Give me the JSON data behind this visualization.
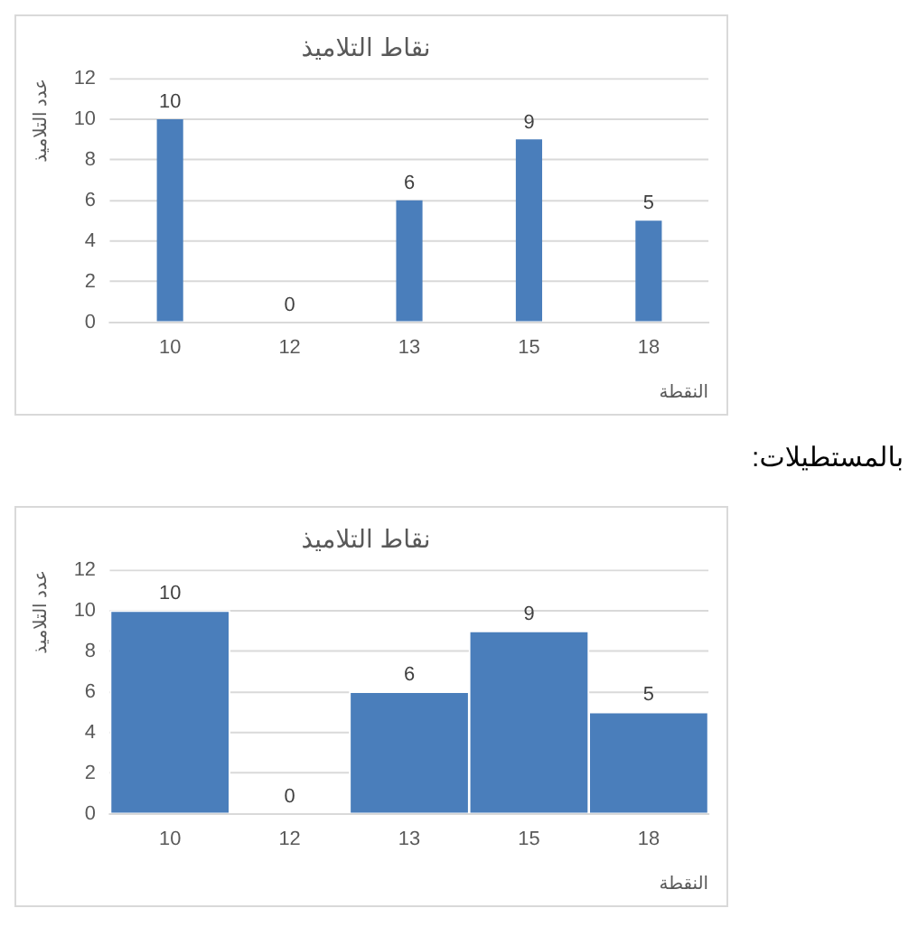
{
  "chart_data": [
    {
      "type": "bar",
      "title": "نقاط التلاميذ",
      "xlabel": "النقطة",
      "ylabel": "عدد التلاميذ",
      "categories": [
        "10",
        "12",
        "13",
        "15",
        "18"
      ],
      "values": [
        10,
        0,
        6,
        9,
        5
      ],
      "color": "#4a7ebb",
      "ylim": [
        0,
        12
      ],
      "yticks": [
        0,
        2,
        4,
        6,
        8,
        10,
        12
      ],
      "grid": "y",
      "data_labels": true
    },
    {
      "type": "bar",
      "title": "نقاط التلاميذ",
      "xlabel": "النقطة",
      "ylabel": "عدد التلاميذ",
      "categories": [
        "10",
        "12",
        "13",
        "15",
        "18"
      ],
      "values": [
        10,
        0,
        6,
        9,
        5
      ],
      "color": "#4a7ebb",
      "ylim": [
        0,
        12
      ],
      "yticks": [
        0,
        2,
        4,
        6,
        8,
        10,
        12
      ],
      "grid": "y",
      "data_labels": true,
      "annotations": [
        "بالمستطيلات:"
      ]
    }
  ]
}
